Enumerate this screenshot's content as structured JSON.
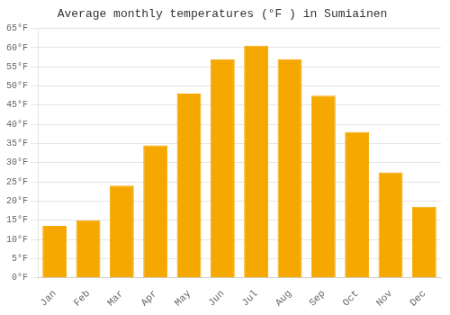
{
  "chart_data": {
    "type": "bar",
    "title": "Average monthly temperatures (°F ) in Sumiainen",
    "categories": [
      "Jan",
      "Feb",
      "Mar",
      "Apr",
      "May",
      "Jun",
      "Jul",
      "Aug",
      "Sep",
      "Oct",
      "Nov",
      "Dec"
    ],
    "values": [
      13.5,
      15.0,
      24.0,
      34.5,
      48.0,
      57.0,
      60.5,
      57.0,
      47.5,
      38.0,
      27.5,
      18.5
    ],
    "color": "#F5A800",
    "ylim": [
      0,
      65
    ],
    "yticks": [
      {
        "value": 0,
        "label": "0°F"
      },
      {
        "value": 5,
        "label": "5°F"
      },
      {
        "value": 10,
        "label": "10°F"
      },
      {
        "value": 15,
        "label": "15°F"
      },
      {
        "value": 20,
        "label": "20°F"
      },
      {
        "value": 25,
        "label": "25°F"
      },
      {
        "value": 30,
        "label": "30°F"
      },
      {
        "value": 35,
        "label": "35°F"
      },
      {
        "value": 40,
        "label": "40°F"
      },
      {
        "value": 45,
        "label": "45°F"
      },
      {
        "value": 50,
        "label": "50°F"
      },
      {
        "value": 55,
        "label": "55°F"
      },
      {
        "value": 60,
        "label": "60°F"
      },
      {
        "value": 65,
        "label": "65°F"
      }
    ],
    "grid": true
  }
}
